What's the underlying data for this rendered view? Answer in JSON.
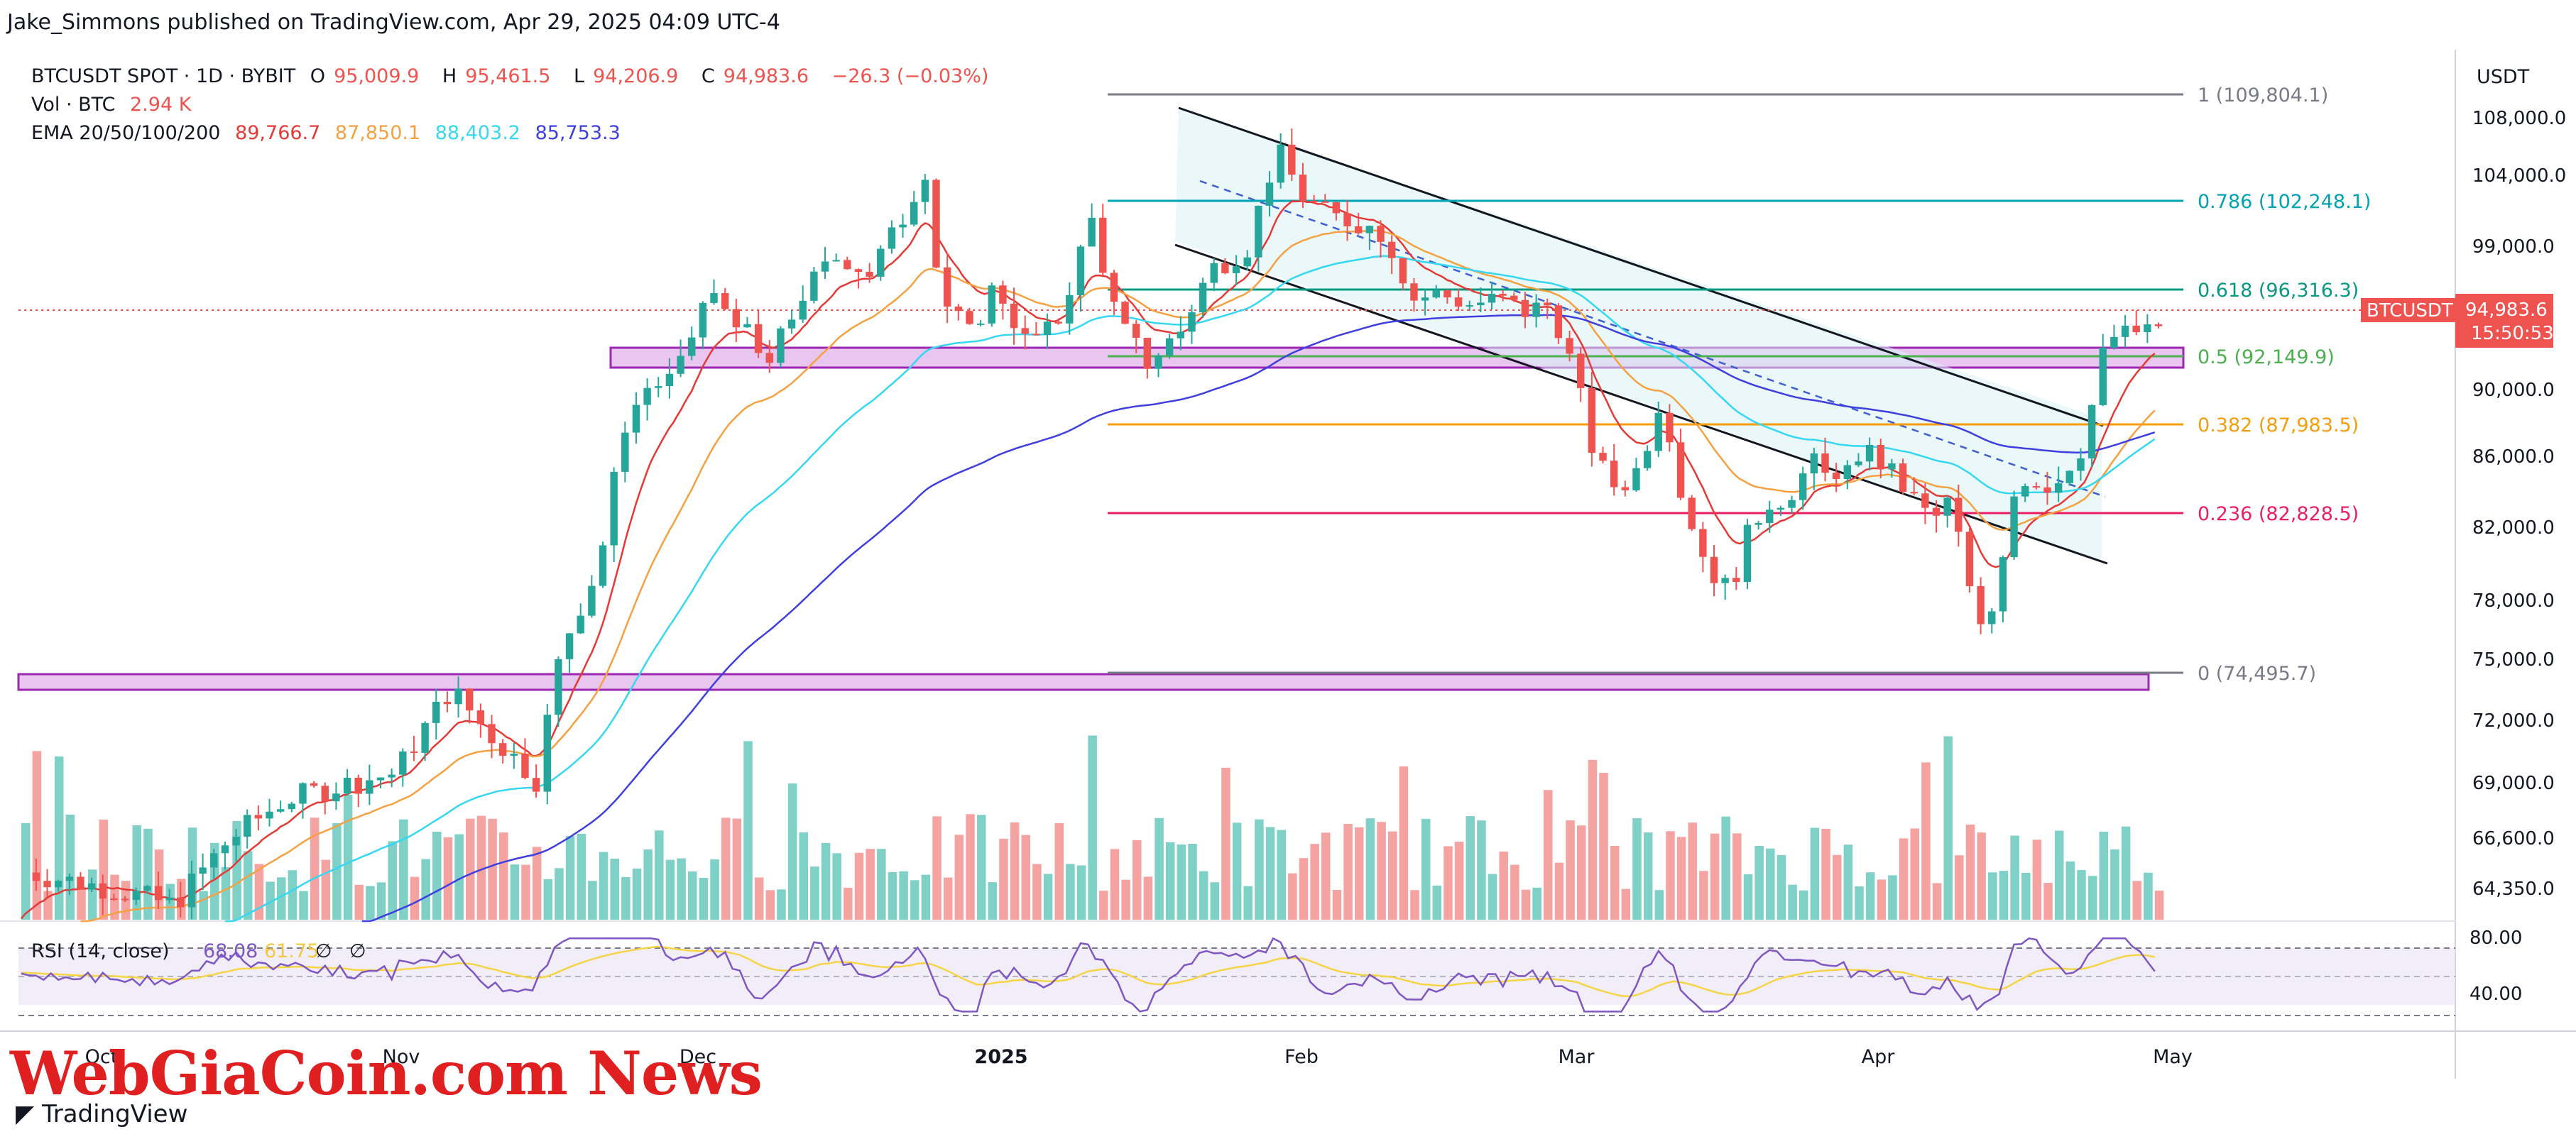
{
  "header": {
    "publisher": "Jake_Simmons published on TradingView.com, Apr 29, 2025 04:09 UTC-4"
  },
  "legend": {
    "symbol": "BTCUSDT SPOT · 1D · BYBIT",
    "open_label": "O",
    "open": "95,009.9",
    "high_label": "H",
    "high": "95,461.5",
    "low_label": "L",
    "low": "94,206.9",
    "close_label": "C",
    "close": "94,983.6",
    "change": "−26.3 (−0.03%)",
    "vol_label": "Vol · BTC",
    "vol": "2.94 K",
    "ema_label": "EMA 20/50/100/200",
    "ema20": "89,766.7",
    "ema50": "87,850.1",
    "ema100": "88,403.2",
    "ema200": "85,753.3"
  },
  "colors": {
    "up": "#26a69a",
    "down": "#ef5350",
    "ema20": "#e53935",
    "ema50": "#f5a142",
    "ema100": "#36d7f2",
    "ema200": "#3f3fe0",
    "rsi": "#7e57c2",
    "rsi_ma": "#f5d547",
    "zone": "#e8c6f0",
    "zone_border": "#9c27b0"
  },
  "axis": {
    "currency": "USDT",
    "price_ticks": [
      "108,000.0",
      "104,000.0",
      "99,000.0",
      "90,000.0",
      "86,000.0",
      "82,000.0",
      "78,000.0",
      "75,000.0",
      "72,000.0",
      "69,000.0",
      "66,600.0",
      "64,350.0"
    ],
    "price_tag_symbol": "BTCUSDT",
    "price_tag_value": "94,983.6",
    "price_tag_time": "15:50:53",
    "rsi_ticks": [
      "80.00",
      "40.00"
    ],
    "time_ticks": [
      "Oct",
      "Nov",
      "Dec",
      "2025",
      "Feb",
      "Mar",
      "Apr",
      "May"
    ]
  },
  "fib_levels": [
    {
      "label": "1 (109,804.1)",
      "color": "#787b86"
    },
    {
      "label": "0.786 (102,248.1)",
      "color": "#00a3b4"
    },
    {
      "label": "0.618 (96,316.3)",
      "color": "#089981"
    },
    {
      "label": "0.5 (92,149.9)",
      "color": "#4caf50"
    },
    {
      "label": "0.382 (87,983.5)",
      "color": "#f59d0a"
    },
    {
      "label": "0.236 (82,828.5)",
      "color": "#e91e63"
    },
    {
      "label": "0 (74,495.7)",
      "color": "#787b86"
    }
  ],
  "rsi": {
    "label": "RSI (14, close)",
    "value": "68.08",
    "ma": "61.75"
  },
  "watermark": "WebGiaCoin.com News",
  "footer": {
    "brand": "TradingView"
  },
  "chart_data": {
    "type": "candlestick",
    "timeframe": "1D",
    "x_range": [
      "2024-09-20",
      "2025-04-29"
    ],
    "ylim": [
      62000,
      110000
    ],
    "scale": "log",
    "ohlc_sample": [
      {
        "month": "2024-10",
        "open": 63300,
        "close": 70200
      },
      {
        "month": "2024-11",
        "open": 70200,
        "close": 96400
      },
      {
        "month": "2024-12",
        "open": 96400,
        "close": 93400
      },
      {
        "month": "2025-01",
        "open": 93400,
        "close": 102400
      },
      {
        "month": "2025-02",
        "open": 102400,
        "close": 84300
      },
      {
        "month": "2025-03",
        "open": 84300,
        "close": 82500
      },
      {
        "month": "2025-04",
        "open": 82500,
        "close": 94983.6
      }
    ],
    "fibonacci": [
      {
        "ratio": 1,
        "price": 109804.1
      },
      {
        "ratio": 0.786,
        "price": 102248.1
      },
      {
        "ratio": 0.618,
        "price": 96316.3
      },
      {
        "ratio": 0.5,
        "price": 92149.9
      },
      {
        "ratio": 0.382,
        "price": 87983.5
      },
      {
        "ratio": 0.236,
        "price": 82828.5
      },
      {
        "ratio": 0,
        "price": 74495.7
      }
    ],
    "last_price": 94983.6,
    "rsi_last": 68.08,
    "rsi_levels": [
      80,
      40
    ]
  }
}
